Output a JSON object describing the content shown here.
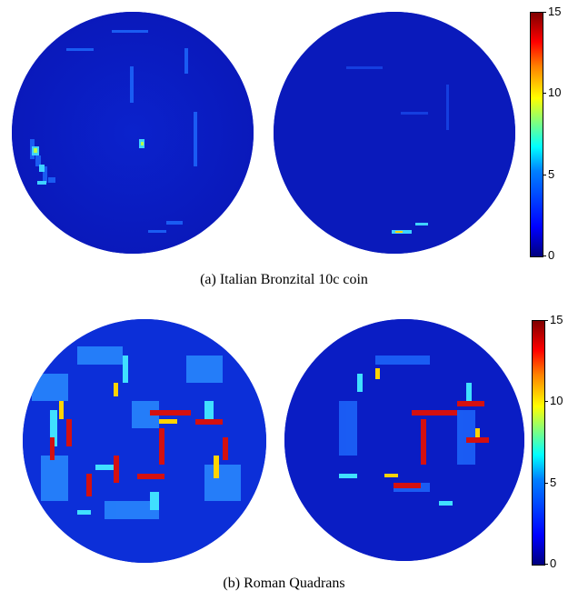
{
  "panels": [
    {
      "caption": "(a)  Italian Bronzital 10c coin",
      "colorbar_ticks": [
        "15",
        "10",
        "5",
        "0"
      ]
    },
    {
      "caption": "(b)  Roman Quadrans",
      "colorbar_ticks": [
        "15",
        "10",
        "5",
        "0"
      ]
    }
  ],
  "colors": {
    "background_low": "#0a1cc8",
    "mid": "#00ffff",
    "high": "#ff0000"
  }
}
